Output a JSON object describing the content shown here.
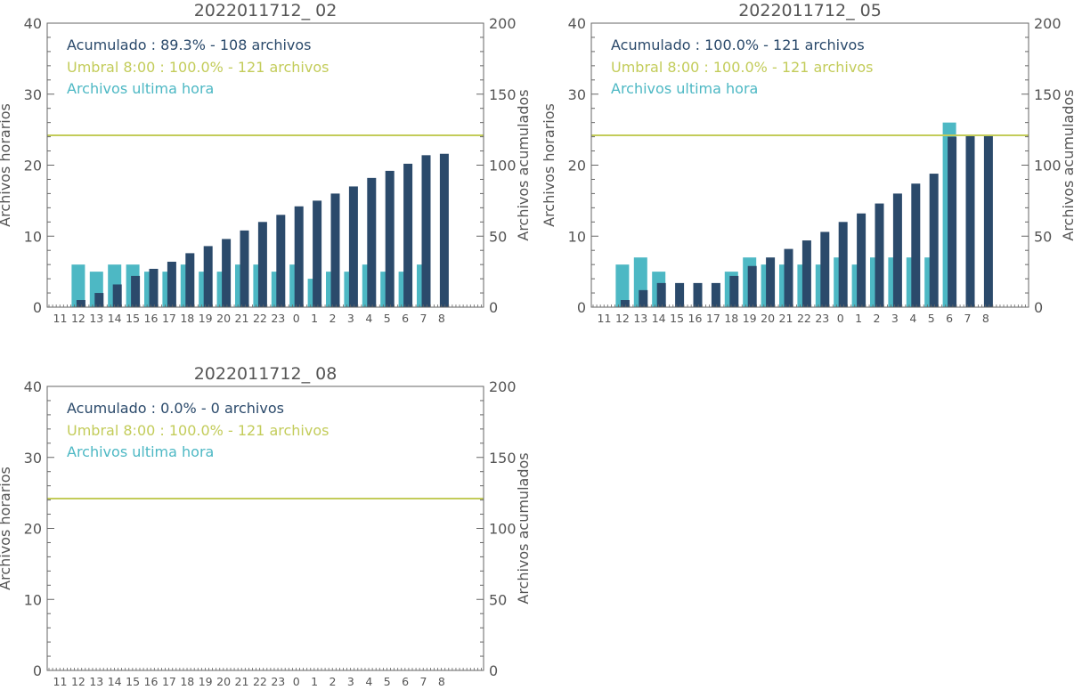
{
  "colors": {
    "hourly": "#4db8c4",
    "cumulative": "#2b4a6b",
    "threshold": "#c3cc5a",
    "text": "#555555",
    "axis": "#666666"
  },
  "chart_data": [
    {
      "type": "bar",
      "title": "2022011712_ 02",
      "ylabel_left": "Archivos horarios",
      "ylabel_right": "Archivos acumulados",
      "ylim_left": [
        0,
        40
      ],
      "ylim_right": [
        0,
        200
      ],
      "yticks_left": [
        "0",
        "10",
        "20",
        "30",
        "40"
      ],
      "yticks_right": [
        "0",
        "50",
        "100",
        "150",
        "200"
      ],
      "categories": [
        "11",
        "12",
        "13",
        "14",
        "15",
        "16",
        "17",
        "18",
        "19",
        "20",
        "21",
        "22",
        "23",
        "0",
        "1",
        "2",
        "3",
        "4",
        "5",
        "6",
        "7",
        "8"
      ],
      "legend": {
        "cumulative": "Acumulado : 89.3% - 108 archivos",
        "threshold": "Umbral 8:00 : 100.0% - 121 archivos",
        "hourly": "Archivos ultima hora"
      },
      "threshold_value": 121,
      "series": [
        {
          "key": "hourly",
          "values": [
            0,
            6,
            5,
            6,
            6,
            5,
            5,
            6,
            5,
            5,
            6,
            6,
            5,
            6,
            4,
            5,
            5,
            6,
            5,
            5,
            6,
            0
          ]
        },
        {
          "key": "cumulative",
          "values": [
            0,
            5,
            10,
            16,
            22,
            27,
            32,
            38,
            43,
            48,
            54,
            60,
            65,
            71,
            75,
            80,
            85,
            91,
            96,
            101,
            107,
            108
          ]
        }
      ]
    },
    {
      "type": "bar",
      "title": "2022011712_ 05",
      "ylabel_left": "Archivos horarios",
      "ylabel_right": "Archivos acumulados",
      "ylim_left": [
        0,
        40
      ],
      "ylim_right": [
        0,
        200
      ],
      "yticks_left": [
        "0",
        "10",
        "20",
        "30",
        "40"
      ],
      "yticks_right": [
        "0",
        "50",
        "100",
        "150",
        "200"
      ],
      "categories": [
        "11",
        "12",
        "13",
        "14",
        "15",
        "16",
        "17",
        "18",
        "19",
        "20",
        "21",
        "22",
        "23",
        "0",
        "1",
        "2",
        "3",
        "4",
        "5",
        "6",
        "7",
        "8"
      ],
      "legend": {
        "cumulative": "Acumulado : 100.0% - 121 archivos",
        "threshold": "Umbral 8:00 : 100.0% - 121 archivos",
        "hourly": "Archivos ultima hora"
      },
      "threshold_value": 121,
      "series": [
        {
          "key": "hourly",
          "values": [
            0,
            6,
            7,
            5,
            0,
            0,
            0,
            5,
            7,
            6,
            6,
            6,
            6,
            7,
            6,
            7,
            7,
            7,
            7,
            26,
            0,
            0
          ]
        },
        {
          "key": "cumulative",
          "values": [
            0,
            5,
            12,
            17,
            17,
            17,
            17,
            22,
            29,
            35,
            41,
            47,
            53,
            60,
            66,
            73,
            80,
            87,
            94,
            120,
            121,
            121
          ]
        }
      ]
    },
    {
      "type": "bar",
      "title": "2022011712_ 08",
      "ylabel_left": "Archivos horarios",
      "ylabel_right": "Archivos acumulados",
      "ylim_left": [
        0,
        40
      ],
      "ylim_right": [
        0,
        200
      ],
      "yticks_left": [
        "0",
        "10",
        "20",
        "30",
        "40"
      ],
      "yticks_right": [
        "0",
        "50",
        "100",
        "150",
        "200"
      ],
      "categories": [
        "11",
        "12",
        "13",
        "14",
        "15",
        "16",
        "17",
        "18",
        "19",
        "20",
        "21",
        "22",
        "23",
        "0",
        "1",
        "2",
        "3",
        "4",
        "5",
        "6",
        "7",
        "8"
      ],
      "legend": {
        "cumulative": "Acumulado : 0.0% - 0 archivos",
        "threshold": "Umbral 8:00 : 100.0% - 121 archivos",
        "hourly": "Archivos ultima hora"
      },
      "threshold_value": 121,
      "series": [
        {
          "key": "hourly",
          "values": [
            0,
            0,
            0,
            0,
            0,
            0,
            0,
            0,
            0,
            0,
            0,
            0,
            0,
            0,
            0,
            0,
            0,
            0,
            0,
            0,
            0,
            0
          ]
        },
        {
          "key": "cumulative",
          "values": [
            0,
            0,
            0,
            0,
            0,
            0,
            0,
            0,
            0,
            0,
            0,
            0,
            0,
            0,
            0,
            0,
            0,
            0,
            0,
            0,
            0,
            0
          ]
        }
      ]
    }
  ]
}
